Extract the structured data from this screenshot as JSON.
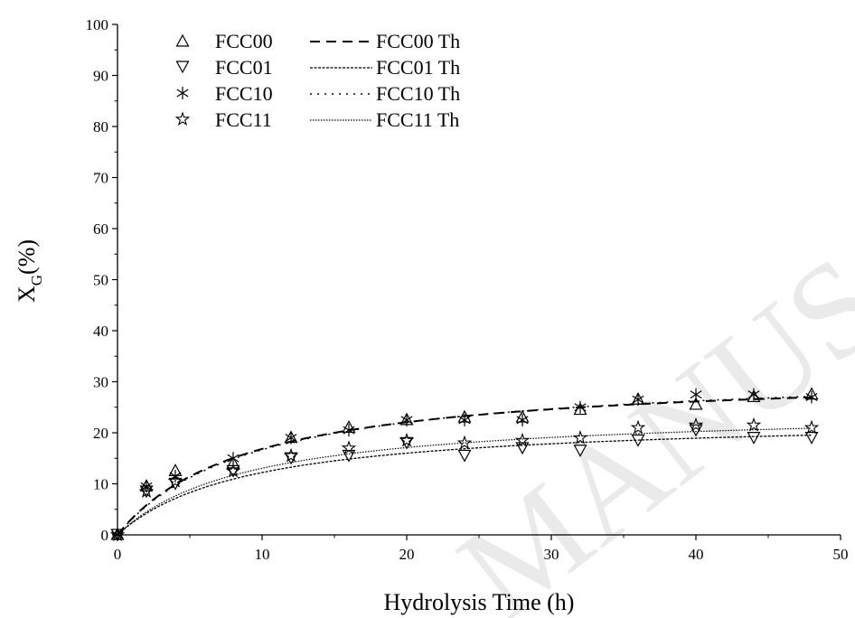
{
  "chart_data": {
    "type": "scatter",
    "title": "",
    "xlabel": "Hydrolysis Time (h)",
    "ylabel_main": "X",
    "ylabel_sub": "G",
    "ylabel_tail": "(%)",
    "xlim": [
      0,
      50
    ],
    "ylim": [
      0,
      100
    ],
    "xticks": [
      0,
      10,
      20,
      30,
      40,
      50
    ],
    "yticks": [
      0,
      10,
      20,
      30,
      40,
      50,
      60,
      70,
      80,
      90,
      100
    ],
    "grid": false,
    "legend_position": "top-left",
    "watermark": "MANUSCRIPT",
    "series": [
      {
        "name": "FCC00",
        "marker": "triangle-up",
        "x": [
          0,
          2,
          4,
          8,
          12,
          16,
          20,
          24,
          28,
          32,
          36,
          40,
          44,
          48
        ],
        "y": [
          0,
          9.5,
          12.5,
          14,
          19,
          21,
          22.5,
          23,
          23,
          24.5,
          26.5,
          25.5,
          27,
          27.5
        ]
      },
      {
        "name": "FCC01",
        "marker": "triangle-down",
        "x": [
          0,
          2,
          4,
          8,
          12,
          16,
          20,
          24,
          28,
          32,
          36,
          40,
          44,
          48
        ],
        "y": [
          0,
          8.5,
          10,
          12.5,
          15,
          15.5,
          18,
          15.5,
          17,
          16.5,
          18.5,
          20.5,
          19,
          19
        ]
      },
      {
        "name": "FCC10",
        "marker": "asterisk",
        "x": [
          0,
          2,
          4,
          8,
          12,
          16,
          20,
          24,
          28,
          32,
          36,
          40,
          44,
          48
        ],
        "y": [
          0,
          9.5,
          11.5,
          15,
          19,
          20.5,
          22.5,
          22.5,
          22.5,
          25,
          26.5,
          27.5,
          27.5,
          27
        ]
      },
      {
        "name": "FCC11",
        "marker": "star",
        "x": [
          0,
          2,
          4,
          8,
          12,
          16,
          20,
          24,
          28,
          32,
          36,
          40,
          44,
          48
        ],
        "y": [
          0,
          8.5,
          10.5,
          12.5,
          15.5,
          17,
          18.5,
          18,
          18.5,
          19,
          21,
          21.5,
          21.5,
          21
        ]
      }
    ],
    "fits": [
      {
        "name": "FCC00 Th",
        "style": "dash",
        "ymax": 32.0,
        "k": 9.0
      },
      {
        "name": "FCC01 Th",
        "style": "dense-dash",
        "ymax": 23.2,
        "k": 9.0
      },
      {
        "name": "FCC10 Th",
        "style": "dot",
        "ymax": 32.5,
        "k": 9.5
      },
      {
        "name": "FCC11 Th",
        "style": "dense-dot",
        "ymax": 24.8,
        "k": 9.0
      }
    ]
  }
}
